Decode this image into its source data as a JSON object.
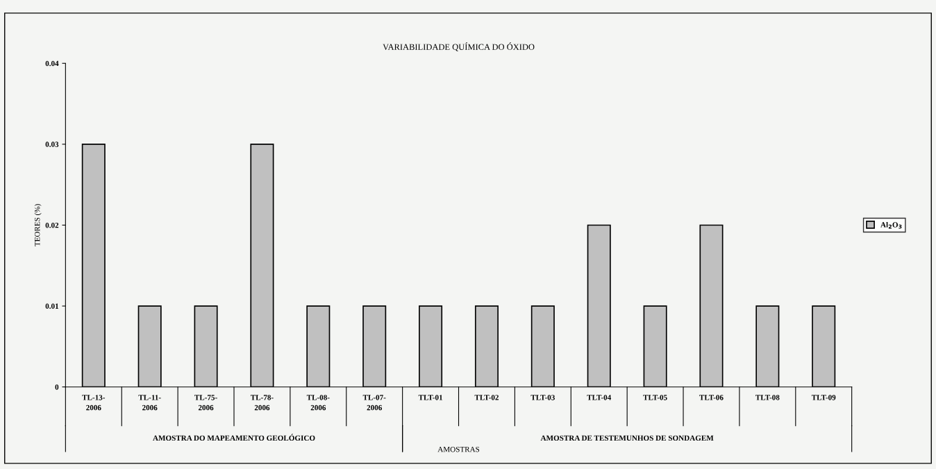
{
  "chart_data": {
    "type": "bar",
    "title": "VARIABILIDADE QUÍMICA DO ÓXIDO",
    "xlabel": "AMOSTRAS",
    "ylabel": "TEORES (%)",
    "categories": [
      "TL-13-\n2006",
      "TL-11-\n2006",
      "TL-75-\n2006",
      "TL-78-\n2006",
      "TL-08-\n2006",
      "TL-07-\n2006",
      "TLT-01",
      "TLT-02",
      "TLT-03",
      "TLT-04",
      "TLT-05",
      "TLT-06",
      "TLT-08",
      "TLT-09"
    ],
    "series": [
      {
        "name": "Al$_{2}$O$_{3}$",
        "color": "#c0c0c0",
        "values": [
          0.03,
          0.01,
          0.01,
          0.03,
          0.01,
          0.01,
          0.01,
          0.01,
          0.01,
          0.02,
          0.01,
          0.02,
          0.01,
          0.01
        ]
      }
    ],
    "annotations": [
      "AMOSTRA DO MAPEAMENTO GEOLÓGICO",
      "AMOSTRA DE TESTEMUNHOS DE SONDAGEM"
    ],
    "ylim": [
      0,
      0.04
    ],
    "yticks": [
      0,
      0.01,
      0.02,
      0.03,
      0.04
    ],
    "grid": false,
    "legend": "right"
  }
}
